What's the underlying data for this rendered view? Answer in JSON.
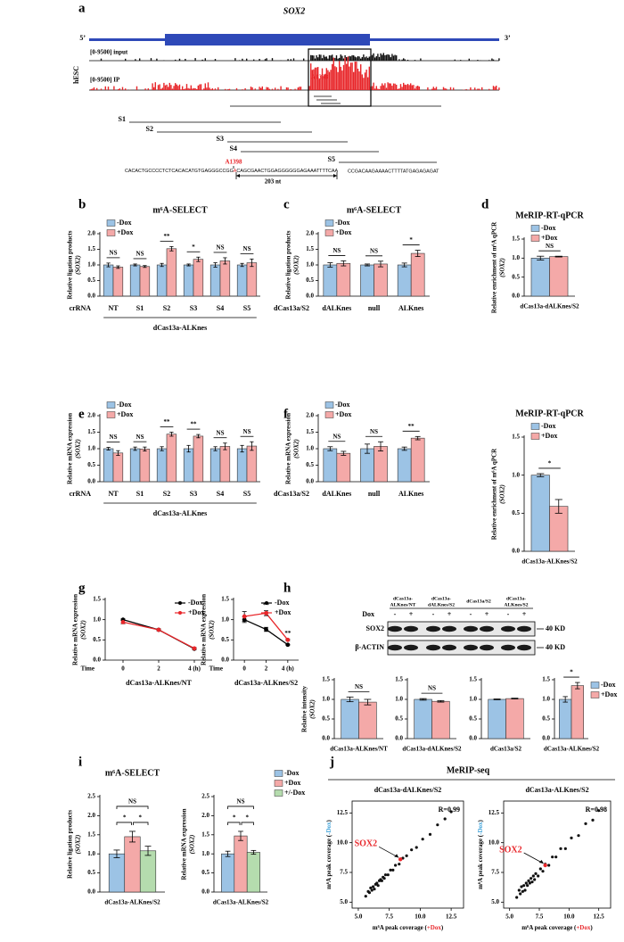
{
  "panel_labels": [
    "a",
    "b",
    "c",
    "d",
    "e",
    "f",
    "g",
    "h",
    "i",
    "j"
  ],
  "panel_a": {
    "gene": "SOX2",
    "five": "5’",
    "three": "3’",
    "cell": "hESC",
    "tracks": [
      "[0-9500] input",
      "[0-9500] IP"
    ],
    "site": "A1398",
    "probes": [
      "S1",
      "S2",
      "S3",
      "S4",
      "S5"
    ],
    "sequence": [
      "CACACTGCCCCTCTCACACATGTGAGGGCCGG",
      "A",
      "CAGCGAACTGGAGGGGGGAGAAATTTTCAA",
      "CCGACAAGAAAACTTTTATGAGAGAGAT"
    ],
    "distance": "203 nt"
  },
  "blot": {
    "lanes": [
      [
        "dCas13a-",
        "ALKnes/NT"
      ],
      [
        "dCas13a-",
        "dALKnes/S2"
      ],
      [
        "dCas13a/S2"
      ],
      [
        "dCas13a-",
        "ALKnes/S2"
      ]
    ],
    "row_label": "Dox",
    "dox": [
      "-",
      "+",
      "-",
      "+",
      "-",
      "+",
      "-",
      "+"
    ],
    "bands": [
      "SOX2",
      "β-ACTIN"
    ],
    "size": "40 KD"
  },
  "panel_j": {
    "title": "MeRIP-seq"
  },
  "chart_data": [
    {
      "type": "bar",
      "title": "m⁶A-SELECT",
      "ylabel": [
        "Relative ligation products",
        "(SOX2)"
      ],
      "categories": [
        "NT",
        "S1",
        "S2",
        "S3",
        "S4",
        "S5"
      ],
      "xprefix": "crRNA",
      "group": "dCas13a-ALKnes",
      "ylim": [
        0,
        2
      ],
      "yticks": [
        {
          "value": 0,
          "label": "0.0"
        },
        0.5,
        {
          "value": 1,
          "label": "1.0"
        },
        1.5,
        {
          "value": 2,
          "label": "2.0"
        }
      ],
      "legend": "top-left",
      "series": [
        {
          "name": "-Dox",
          "color": "#9cc3e5",
          "values": [
            1.0,
            1.0,
            1.0,
            1.0,
            1.0,
            1.0
          ],
          "errors": [
            0.06,
            0.03,
            0.05,
            0.03,
            0.07,
            0.05
          ]
        },
        {
          "name": "+Dox",
          "color": "#f4a9a8",
          "values": [
            0.93,
            0.95,
            1.52,
            1.18,
            1.13,
            1.07
          ],
          "errors": [
            0.04,
            0.03,
            0.07,
            0.07,
            0.1,
            0.12
          ]
        }
      ],
      "significance": [
        "NS",
        "NS",
        "**",
        "*",
        "NS",
        "NS"
      ]
    },
    {
      "type": "bar",
      "title": "m⁶A-SELECT",
      "ylabel": [
        "Relative ligation products",
        "(SOX2)"
      ],
      "categories": [
        "dALKnes",
        "null",
        "ALKnes"
      ],
      "xprefix": "dCas13a/S2",
      "ylim": [
        0,
        2
      ],
      "yticks": [
        {
          "value": 0,
          "label": "0.0"
        },
        0.5,
        {
          "value": 1,
          "label": "1.0"
        },
        1.5,
        {
          "value": 2,
          "label": "2.0"
        }
      ],
      "legend": "top-left",
      "series": [
        {
          "name": "-Dox",
          "color": "#9cc3e5",
          "values": [
            1.0,
            1.0,
            1.0
          ],
          "errors": [
            0.07,
            0.03,
            0.06
          ]
        },
        {
          "name": "+Dox",
          "color": "#f4a9a8",
          "values": [
            1.05,
            1.03,
            1.37
          ],
          "errors": [
            0.08,
            0.09,
            0.1
          ]
        }
      ],
      "significance": [
        "NS",
        "NS",
        "*"
      ]
    },
    {
      "type": "bar",
      "title": "MeRIP-RT-qPCR",
      "ylabel": [
        "Relative enrichment of m⁶A qPCR",
        "(SOX2)"
      ],
      "categories": [
        null
      ],
      "xlabel": "dCas13a-dALKnes/S2",
      "ylim": [
        0,
        1.5
      ],
      "yticks": [
        {
          "value": 0,
          "label": "0.0"
        },
        0.5,
        {
          "value": 1,
          "label": "1.0"
        },
        1.5
      ],
      "legend": "top-left",
      "series": [
        {
          "name": "-Dox",
          "color": "#9cc3e5",
          "values": [
            1.0
          ],
          "errors": [
            0.05
          ]
        },
        {
          "name": "+Dox",
          "color": "#f4a9a8",
          "values": [
            1.04
          ],
          "errors": [
            0.01
          ]
        }
      ],
      "significance": [
        "NS"
      ]
    },
    {
      "type": "bar",
      "ylabel": [
        "Relative mRNA expression",
        "(SOX2)"
      ],
      "categories": [
        "NT",
        "S1",
        "S2",
        "S3",
        "S4",
        "S5"
      ],
      "xprefix": "crRNA",
      "group": "dCas13a-ALKnes",
      "ylim": [
        0,
        2
      ],
      "yticks": [
        {
          "value": 0,
          "label": "0.0"
        },
        0.5,
        {
          "value": 1,
          "label": "1.0"
        },
        1.5,
        {
          "value": 2,
          "label": "2.0"
        }
      ],
      "legend": "top-left",
      "series": [
        {
          "name": "-Dox",
          "color": "#9cc3e5",
          "values": [
            1.0,
            1.0,
            1.0,
            1.0,
            1.0,
            1.0
          ],
          "errors": [
            0.04,
            0.05,
            0.06,
            0.1,
            0.06,
            0.1
          ]
        },
        {
          "name": "+Dox",
          "color": "#f4a9a8",
          "values": [
            0.87,
            0.99,
            1.44,
            1.38,
            1.07,
            1.08
          ],
          "errors": [
            0.07,
            0.06,
            0.06,
            0.05,
            0.1,
            0.13
          ]
        }
      ],
      "significance": [
        "NS",
        "NS",
        "**",
        "**",
        "NS",
        "NS"
      ]
    },
    {
      "type": "bar",
      "ylabel": [
        "Relative mRNA expression",
        "(SOX2)"
      ],
      "categories": [
        "dALKnes",
        "null",
        "ALKnes"
      ],
      "xprefix": "dCas13a/S2",
      "ylim": [
        0,
        2
      ],
      "yticks": [
        {
          "value": 0,
          "label": "0.0"
        },
        0.5,
        {
          "value": 1,
          "label": "1.0"
        },
        1.5,
        {
          "value": 2,
          "label": "2.0"
        }
      ],
      "legend": "top-left",
      "series": [
        {
          "name": "-Dox",
          "color": "#9cc3e5",
          "values": [
            1.0,
            1.0,
            1.0
          ],
          "errors": [
            0.06,
            0.14,
            0.05
          ]
        },
        {
          "name": "+Dox",
          "color": "#f4a9a8",
          "values": [
            0.86,
            1.07,
            1.32
          ],
          "errors": [
            0.06,
            0.14,
            0.05
          ]
        }
      ],
      "significance": [
        "NS",
        "NS",
        "**"
      ]
    },
    {
      "type": "bar",
      "title": "MeRIP-RT-qPCR",
      "ylabel": [
        "Relative enrichment of m⁶A qPCR",
        "(SOX2)"
      ],
      "categories": [
        null
      ],
      "xlabel": "dCas13a-ALKnes/S2",
      "ylim": [
        0,
        1.5
      ],
      "yticks": [
        {
          "value": 0,
          "label": "0.0"
        },
        0.5,
        {
          "value": 1,
          "label": "1.0"
        },
        1.5
      ],
      "legend": "top-left",
      "series": [
        {
          "name": "-Dox",
          "color": "#9cc3e5",
          "values": [
            1.0
          ],
          "errors": [
            0.02
          ]
        },
        {
          "name": "+Dox",
          "color": "#f4a9a8",
          "values": [
            0.59
          ],
          "errors": [
            0.09
          ]
        }
      ],
      "significance": [
        "*"
      ]
    },
    {
      "type": "line",
      "ylabel": [
        "Relative mRNA expression",
        "(SOX2)"
      ],
      "xprefix": "Time",
      "xlabel": "dCas13a-ALKnes/NT",
      "x": [
        0,
        2,
        4
      ],
      "xlim": [
        -1,
        5
      ],
      "xticks": [
        0,
        2,
        {
          "value": 4,
          "label": "4 (h)"
        }
      ],
      "ylim": [
        0,
        1.5
      ],
      "yticks": [
        {
          "value": 0,
          "label": "0.0"
        },
        0.5,
        {
          "value": 1,
          "label": "1.0"
        },
        1.5
      ],
      "legend": "top-right",
      "series": [
        {
          "name": "-Dox",
          "color": "#000000",
          "values": [
            1.0,
            0.75,
            0.28
          ],
          "errors": [
            0.02,
            0.02,
            0.02
          ]
        },
        {
          "name": "+Dox",
          "color": "#e8262a",
          "values": [
            0.94,
            0.75,
            0.29
          ],
          "errors": [
            0.04,
            0.02,
            0.02
          ]
        }
      ]
    },
    {
      "type": "line",
      "ylabel": [
        "Relative mRNA expression",
        "(SOX2)"
      ],
      "xprefix": "Time",
      "xlabel": "dCas13a-ALKnes/S2",
      "x": [
        0,
        2,
        4
      ],
      "xlim": [
        -1,
        5
      ],
      "xticks": [
        0,
        2,
        {
          "value": 4,
          "label": "4 (h)"
        }
      ],
      "ylim": [
        0,
        1.5
      ],
      "yticks": [
        {
          "value": 0,
          "label": "0.0"
        },
        0.5,
        {
          "value": 1,
          "label": "1.0"
        },
        1.5
      ],
      "legend": "top-right",
      "series": [
        {
          "name": "-Dox",
          "color": "#000000",
          "values": [
            1.0,
            0.76,
            0.38
          ],
          "errors": [
            0.07,
            0.05,
            0.01
          ]
        },
        {
          "name": "+Dox",
          "color": "#e8262a",
          "values": [
            1.08,
            1.16,
            0.5
          ],
          "errors": [
            0.12,
            0.06,
            0.02
          ]
        }
      ],
      "significance": [
        null,
        "**",
        "**"
      ]
    },
    {
      "type": "bar",
      "ylabel": [
        "Relative intensity",
        "(SOX2)"
      ],
      "categories": [
        null
      ],
      "xlabel": "dCas13a-ALKnes/NT",
      "ylim": [
        0,
        1.5
      ],
      "yticks": [
        {
          "value": 0,
          "label": "0.0"
        },
        0.5,
        {
          "value": 1,
          "label": "1.0"
        },
        1.5
      ],
      "series": [
        {
          "color": "#9cc3e5",
          "values": [
            1.0
          ],
          "errors": [
            0.06
          ]
        },
        {
          "color": "#f4a9a8",
          "values": [
            0.93
          ],
          "errors": [
            0.07
          ]
        }
      ],
      "significance": [
        "NS"
      ]
    },
    {
      "type": "bar",
      "categories": [
        null
      ],
      "xlabel": "dCas13a-dALKnes/S2",
      "ylim": [
        0,
        1.5
      ],
      "yticks": [
        {
          "value": 0,
          "label": "0.0"
        },
        0.5,
        {
          "value": 1,
          "label": "1.0"
        },
        1.5
      ],
      "series": [
        {
          "color": "#9cc3e5",
          "values": [
            1.0
          ],
          "errors": [
            0.02
          ]
        },
        {
          "color": "#f4a9a8",
          "values": [
            0.95
          ],
          "errors": [
            0.02
          ]
        }
      ],
      "significance": [
        "NS"
      ]
    },
    {
      "type": "bar",
      "categories": [
        null
      ],
      "xlabel": "dCas13a/S2",
      "ylim": [
        0,
        1.5
      ],
      "yticks": [
        {
          "value": 0,
          "label": "0.0"
        },
        0.5,
        {
          "value": 1,
          "label": "1.0"
        },
        1.5
      ],
      "series": [
        {
          "color": "#9cc3e5",
          "values": [
            1.0
          ],
          "errors": [
            0.01
          ]
        },
        {
          "color": "#f4a9a8",
          "values": [
            1.02
          ],
          "errors": [
            0.01
          ]
        }
      ]
    },
    {
      "type": "bar",
      "categories": [
        null
      ],
      "xlabel": "dCas13a-ALKnes/S2",
      "ylim": [
        0,
        1.5
      ],
      "yticks": [
        {
          "value": 0,
          "label": "0.0"
        },
        0.5,
        {
          "value": 1,
          "label": "1.0"
        },
        1.5
      ],
      "legend": "right",
      "series": [
        {
          "name": "-Dox",
          "color": "#9cc3e5",
          "values": [
            1.0
          ],
          "errors": [
            0.07
          ]
        },
        {
          "name": "+Dox",
          "color": "#f4a9a8",
          "values": [
            1.35
          ],
          "errors": [
            0.08
          ]
        }
      ],
      "significance": [
        "*"
      ]
    },
    {
      "type": "bar",
      "title": "m⁶A-SELECT",
      "ylabel": [
        "Relative ligation products",
        "(SOX2)"
      ],
      "categories": [
        null
      ],
      "xlabel": "dCas13a-ALKnes/S2",
      "ylim": [
        0,
        2.5
      ],
      "yticks": [
        {
          "value": 0,
          "label": "0.0"
        },
        0.5,
        {
          "value": 1,
          "label": "1.0"
        },
        1.5,
        {
          "value": 2,
          "label": "2.0"
        },
        2.5
      ],
      "series": [
        {
          "color": "#9cc3e5",
          "values": [
            1.0
          ],
          "errors": [
            0.1
          ]
        },
        {
          "color": "#f4a9a8",
          "values": [
            1.45
          ],
          "errors": [
            0.14
          ]
        },
        {
          "color": "#b5dcae",
          "values": [
            1.08
          ],
          "errors": [
            0.12
          ]
        }
      ],
      "significance": [
        "*",
        "*",
        "NS"
      ]
    },
    {
      "type": "bar",
      "ylabel": [
        "Relative mRNA expression",
        "(SOX2)"
      ],
      "categories": [
        null
      ],
      "xlabel": "dCas13a-ALKnes/S2",
      "ylim": [
        0,
        2.5
      ],
      "yticks": [
        {
          "value": 0,
          "label": "0.0"
        },
        0.5,
        {
          "value": 1,
          "label": "1.0"
        },
        1.5,
        {
          "value": 2,
          "label": "2.0"
        },
        2.5
      ],
      "legend": "upper-right",
      "series": [
        {
          "name": "-Dox",
          "color": "#9cc3e5",
          "values": [
            1.0
          ],
          "errors": [
            0.07
          ]
        },
        {
          "name": "+Dox",
          "color": "#f4a9a8",
          "values": [
            1.47
          ],
          "errors": [
            0.12
          ]
        },
        {
          "name": "+/-Dox",
          "color": "#b5dcae",
          "values": [
            1.04
          ],
          "errors": [
            0.05
          ]
        }
      ],
      "significance": [
        "*",
        "*",
        "NS"
      ]
    },
    {
      "type": "scatter",
      "title": "dCas13a-dALKnes/S2",
      "r_label": "R=0.99",
      "color": "#111111",
      "xlabel": [
        "m⁶A peak coverage (",
        "+Dox",
        ")"
      ],
      "xlabel_color": "#e8262a",
      "ylabel": [
        "m⁶A peak coverage (",
        "-Dox",
        ")"
      ],
      "ylabel_color": "#3aa0d8",
      "xlim": [
        4.5,
        13.5
      ],
      "ylim": [
        4.5,
        13.5
      ],
      "xticks": [
        {
          "value": 5,
          "label": "5.0"
        },
        7.5,
        {
          "value": 10,
          "label": "10.0"
        },
        12.5
      ],
      "yticks": [
        {
          "value": 5,
          "label": "5.0"
        },
        7.5,
        {
          "value": 10,
          "label": "10.0"
        },
        12.5
      ],
      "x": [
        5.6,
        5.8,
        5.9,
        6.0,
        6.1,
        6.2,
        6.3,
        6.4,
        6.5,
        6.6,
        6.7,
        6.8,
        6.9,
        7.0,
        7.1,
        7.2,
        7.4,
        7.6,
        7.8,
        8.0,
        8.3,
        8.6,
        8.9,
        9.3,
        9.7,
        10.2,
        10.8,
        11.4,
        12.0,
        12.5
      ],
      "y": [
        5.5,
        5.9,
        5.8,
        6.2,
        6.0,
        6.3,
        6.1,
        6.5,
        6.6,
        6.4,
        6.8,
        6.9,
        6.8,
        7.1,
        7.0,
        7.3,
        7.3,
        7.7,
        7.7,
        8.1,
        8.2,
        8.7,
        8.9,
        9.4,
        9.6,
        10.3,
        10.7,
        11.5,
        12.0,
        12.6
      ],
      "highlight": {
        "label": "SOX2",
        "x": 8.4,
        "y": 8.6,
        "color": "#e8262a"
      }
    },
    {
      "type": "scatter",
      "title": "dCas13a-ALKnes/S2",
      "r_label": "R=0.98",
      "color": "#111111",
      "xlabel": [
        "m⁶A peak coverage (",
        "+Dox",
        ")"
      ],
      "xlabel_color": "#e8262a",
      "ylabel": [
        "m⁶A peak coverage (",
        "-Dox",
        ")"
      ],
      "ylabel_color": "#3aa0d8",
      "xlim": [
        4.5,
        13.5
      ],
      "ylim": [
        4.5,
        13.5
      ],
      "xticks": [
        {
          "value": 5,
          "label": "5.0"
        },
        7.5,
        {
          "value": 10,
          "label": "10.0"
        },
        12.5
      ],
      "yticks": [
        {
          "value": 5,
          "label": "5.0"
        },
        7.5,
        {
          "value": 10,
          "label": "10.0"
        },
        12.5
      ],
      "x": [
        5.6,
        5.8,
        5.9,
        6.0,
        6.1,
        6.2,
        6.3,
        6.4,
        6.5,
        6.6,
        6.7,
        6.8,
        6.9,
        7.0,
        7.1,
        7.2,
        7.4,
        7.6,
        7.8,
        8.0,
        8.3,
        8.6,
        8.9,
        9.3,
        9.7,
        10.2,
        10.8,
        11.4,
        12.0,
        12.5
      ],
      "y": [
        5.4,
        6.0,
        5.7,
        6.3,
        5.9,
        6.4,
        6.0,
        6.6,
        6.4,
        6.8,
        6.6,
        7.0,
        6.7,
        7.2,
        6.9,
        7.4,
        7.2,
        7.8,
        7.6,
        8.2,
        8.1,
        8.8,
        8.8,
        9.5,
        9.5,
        10.4,
        10.6,
        11.6,
        11.9,
        12.7
      ],
      "highlight": {
        "label": "SOX2",
        "x": 8.0,
        "y": 8.1,
        "color": "#e8262a"
      }
    }
  ]
}
